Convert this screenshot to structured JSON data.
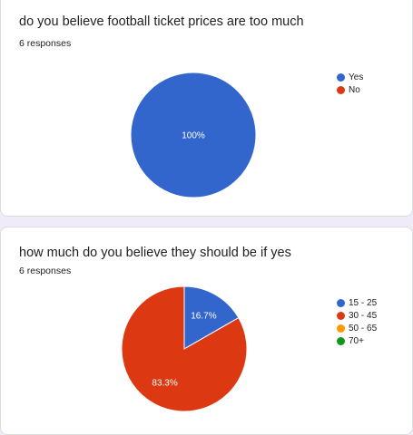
{
  "questions": [
    {
      "title": "do you believe football ticket prices are too much",
      "responses": "6 responses",
      "chart_data": {
        "type": "pie",
        "categories": [
          "Yes",
          "No"
        ],
        "values": [
          100,
          0
        ],
        "labels": [
          "100%",
          ""
        ],
        "colors": [
          "#3366cc",
          "#dc3912"
        ]
      },
      "legend": [
        {
          "label": "Yes",
          "color": "#3366cc"
        },
        {
          "label": "No",
          "color": "#dc3912"
        }
      ]
    },
    {
      "title": "how much do you believe they should be if yes",
      "responses": "6 responses",
      "chart_data": {
        "type": "pie",
        "categories": [
          "15 - 25",
          "30 - 45",
          "50 - 65",
          "70+"
        ],
        "values": [
          16.7,
          83.3,
          0,
          0
        ],
        "labels": [
          "16.7%",
          "83.3%",
          "",
          ""
        ],
        "colors": [
          "#3366cc",
          "#dc3912",
          "#ff9900",
          "#109618"
        ]
      },
      "legend": [
        {
          "label": "15 - 25",
          "color": "#3366cc"
        },
        {
          "label": "30 - 45",
          "color": "#dc3912"
        },
        {
          "label": "50 - 65",
          "color": "#ff9900"
        },
        {
          "label": "70+",
          "color": "#109618"
        }
      ]
    }
  ]
}
